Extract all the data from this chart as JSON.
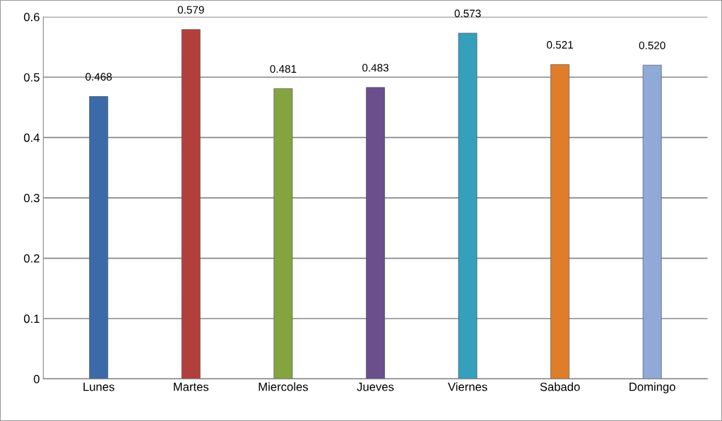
{
  "chart_data": {
    "type": "bar",
    "categories": [
      "Lunes",
      "Martes",
      "Miercoles",
      "Jueves",
      "Viernes",
      "Sabado",
      "Domingo"
    ],
    "values": [
      0.468,
      0.579,
      0.481,
      0.483,
      0.573,
      0.521,
      0.52
    ],
    "value_labels": [
      "0.468",
      "0.579",
      "0.481",
      "0.483",
      "0.573",
      "0.521",
      "0.520"
    ],
    "colors": [
      "#3a6aa8",
      "#b33f3c",
      "#84a43f",
      "#6a4e8e",
      "#35a0bb",
      "#e07d2a",
      "#8faad6"
    ],
    "ylim": [
      0,
      0.6
    ],
    "yticks": [
      0,
      0.1,
      0.2,
      0.3,
      0.4,
      0.5,
      0.6
    ],
    "grid": "y"
  }
}
